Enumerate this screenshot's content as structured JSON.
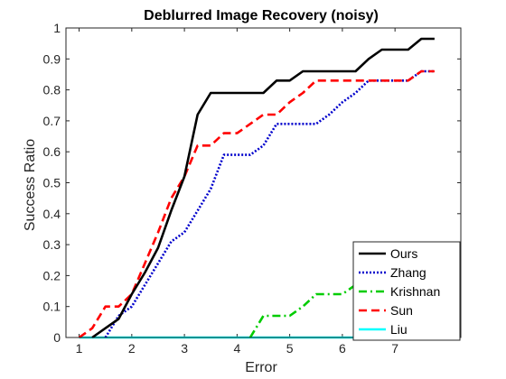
{
  "chart_data": {
    "type": "line",
    "title": "Deblurred Image Recovery (noisy)",
    "xlabel": "Error",
    "ylabel": "Success Ratio",
    "xlim": [
      0.75,
      8.25
    ],
    "ylim": [
      0,
      1
    ],
    "xticks": [
      1,
      2,
      3,
      4,
      5,
      6,
      7
    ],
    "xtick_labels": [
      "1",
      "2",
      "3",
      "4",
      "5",
      "6",
      "7"
    ],
    "yticks": [
      0,
      0.1,
      0.2,
      0.3,
      0.4,
      0.5,
      0.6,
      0.7,
      0.8,
      0.9,
      1
    ],
    "ytick_labels": [
      "0",
      "0.1",
      "0.2",
      "0.3",
      "0.4",
      "0.5",
      "0.6",
      "0.7",
      "0.8",
      "0.9",
      "1"
    ],
    "grid": false,
    "legend_position": "bottom-right",
    "series": [
      {
        "name": "Ours",
        "color": "#000000",
        "dash": "solid",
        "x": [
          1.25,
          1.5,
          1.75,
          2.0,
          2.25,
          2.5,
          2.75,
          3.0,
          3.25,
          3.5,
          3.75,
          4.0,
          4.25,
          4.5,
          4.75,
          5.0,
          5.25,
          5.5,
          5.75,
          6.0,
          6.25,
          6.5,
          6.75,
          7.0,
          7.25,
          7.5,
          7.75
        ],
        "y": [
          0.0,
          0.03,
          0.06,
          0.14,
          0.21,
          0.29,
          0.41,
          0.52,
          0.72,
          0.79,
          0.79,
          0.79,
          0.79,
          0.79,
          0.83,
          0.83,
          0.86,
          0.86,
          0.86,
          0.86,
          0.86,
          0.9,
          0.93,
          0.93,
          0.93,
          0.965,
          0.965
        ]
      },
      {
        "name": "Zhang",
        "color": "#0000cc",
        "dash": "dotted",
        "x": [
          1.5,
          1.75,
          2.0,
          2.25,
          2.5,
          2.75,
          3.0,
          3.25,
          3.5,
          3.75,
          4.0,
          4.25,
          4.5,
          4.75,
          5.0,
          5.25,
          5.5,
          5.75,
          6.0,
          6.25,
          6.5,
          6.75,
          7.0,
          7.25,
          7.5,
          7.75
        ],
        "y": [
          0.0,
          0.07,
          0.1,
          0.17,
          0.24,
          0.31,
          0.34,
          0.41,
          0.48,
          0.59,
          0.59,
          0.59,
          0.62,
          0.69,
          0.69,
          0.69,
          0.69,
          0.72,
          0.76,
          0.79,
          0.83,
          0.83,
          0.83,
          0.83,
          0.86,
          0.86
        ]
      },
      {
        "name": "Krishnan",
        "color": "#00cc00",
        "dash": "dashdot",
        "x": [
          4.25,
          4.5,
          4.75,
          5.0,
          5.25,
          5.5,
          5.75,
          6.0,
          6.25
        ],
        "y": [
          0.0,
          0.07,
          0.07,
          0.07,
          0.1,
          0.14,
          0.14,
          0.14,
          0.17
        ]
      },
      {
        "name": "Sun",
        "color": "#ff0000",
        "dash": "dashed",
        "x": [
          1.0,
          1.25,
          1.5,
          1.75,
          2.0,
          2.25,
          2.5,
          2.75,
          3.0,
          3.25,
          3.5,
          3.75,
          4.0,
          4.25,
          4.5,
          4.75,
          5.0,
          5.25,
          5.5,
          5.75,
          6.0,
          6.25,
          6.5,
          6.75,
          7.0,
          7.25,
          7.5,
          7.75
        ],
        "y": [
          0.0,
          0.03,
          0.1,
          0.1,
          0.14,
          0.24,
          0.34,
          0.45,
          0.52,
          0.62,
          0.62,
          0.66,
          0.66,
          0.69,
          0.72,
          0.72,
          0.76,
          0.79,
          0.83,
          0.83,
          0.83,
          0.83,
          0.83,
          0.83,
          0.83,
          0.83,
          0.86,
          0.86
        ]
      },
      {
        "name": "Liu",
        "color": "#00ffff",
        "dash": "solid",
        "x": [
          1.0,
          7.75
        ],
        "y": [
          0.0,
          0.0
        ]
      }
    ]
  }
}
